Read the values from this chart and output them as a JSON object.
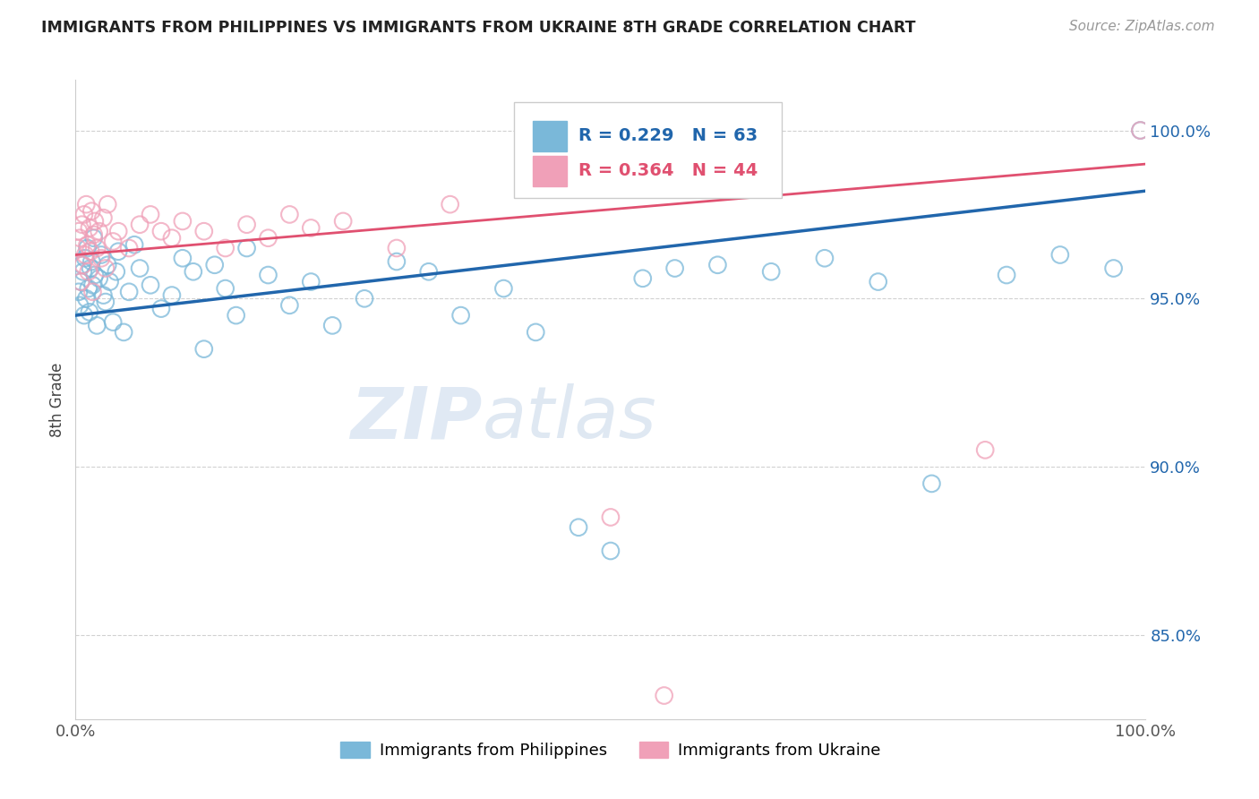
{
  "title": "IMMIGRANTS FROM PHILIPPINES VS IMMIGRANTS FROM UKRAINE 8TH GRADE CORRELATION CHART",
  "source": "Source: ZipAtlas.com",
  "ylabel": "8th Grade",
  "y_ticks": [
    85.0,
    90.0,
    95.0,
    100.0
  ],
  "y_tick_labels": [
    "85.0%",
    "90.0%",
    "95.0%",
    "100.0%"
  ],
  "x_range": [
    0.0,
    100.0
  ],
  "y_range": [
    82.5,
    101.5
  ],
  "legend_r_blue": "R = 0.229",
  "legend_n_blue": "N = 63",
  "legend_r_pink": "R = 0.364",
  "legend_n_pink": "N = 44",
  "blue_color": "#7ab8d9",
  "pink_color": "#f0a0b8",
  "blue_line_color": "#2166ac",
  "pink_line_color": "#e05070",
  "watermark_zip": "ZIP",
  "watermark_atlas": "atlas",
  "phil_x": [
    0.3,
    0.4,
    0.5,
    0.6,
    0.7,
    0.8,
    0.9,
    1.0,
    1.1,
    1.2,
    1.3,
    1.4,
    1.5,
    1.6,
    1.7,
    1.8,
    2.0,
    2.2,
    2.4,
    2.6,
    2.8,
    3.0,
    3.2,
    3.5,
    3.8,
    4.0,
    4.5,
    5.0,
    5.5,
    6.0,
    7.0,
    8.0,
    9.0,
    10.0,
    11.0,
    12.0,
    13.0,
    14.0,
    15.0,
    16.0,
    18.0,
    20.0,
    22.0,
    24.0,
    27.0,
    30.0,
    33.0,
    36.0,
    40.0,
    43.0,
    47.0,
    50.0,
    53.0,
    56.0,
    60.0,
    65.0,
    70.0,
    75.0,
    80.0,
    87.0,
    92.0,
    97.0,
    99.5
  ],
  "phil_y": [
    95.2,
    94.8,
    95.5,
    96.0,
    95.8,
    94.5,
    96.2,
    95.0,
    96.5,
    95.3,
    94.6,
    95.9,
    96.1,
    95.4,
    96.8,
    95.7,
    94.2,
    95.6,
    96.3,
    95.1,
    94.9,
    96.0,
    95.5,
    94.3,
    95.8,
    96.4,
    94.0,
    95.2,
    96.6,
    95.9,
    95.4,
    94.7,
    95.1,
    96.2,
    95.8,
    93.5,
    96.0,
    95.3,
    94.5,
    96.5,
    95.7,
    94.8,
    95.5,
    94.2,
    95.0,
    96.1,
    95.8,
    94.5,
    95.3,
    94.0,
    88.2,
    87.5,
    95.6,
    95.9,
    96.0,
    95.8,
    96.2,
    95.5,
    89.5,
    95.7,
    96.3,
    95.9,
    100.0
  ],
  "ukr_x": [
    0.2,
    0.3,
    0.4,
    0.5,
    0.6,
    0.7,
    0.8,
    0.9,
    1.0,
    1.1,
    1.2,
    1.3,
    1.4,
    1.5,
    1.6,
    1.7,
    1.8,
    2.0,
    2.2,
    2.4,
    2.6,
    2.8,
    3.0,
    3.5,
    4.0,
    5.0,
    6.0,
    7.0,
    8.0,
    9.0,
    10.0,
    12.0,
    14.0,
    16.0,
    18.0,
    20.0,
    22.0,
    25.0,
    30.0,
    35.0,
    50.0,
    55.0,
    85.0,
    99.5
  ],
  "ukr_y": [
    96.5,
    97.0,
    96.8,
    95.5,
    97.2,
    96.0,
    97.5,
    96.3,
    97.8,
    96.6,
    95.8,
    97.1,
    96.4,
    97.6,
    95.2,
    96.9,
    97.3,
    96.5,
    97.0,
    96.2,
    97.4,
    95.9,
    97.8,
    96.7,
    97.0,
    96.5,
    97.2,
    97.5,
    97.0,
    96.8,
    97.3,
    97.0,
    96.5,
    97.2,
    96.8,
    97.5,
    97.1,
    97.3,
    96.5,
    97.8,
    88.5,
    83.2,
    90.5,
    100.0
  ],
  "blue_line_x0": 0,
  "blue_line_y0": 94.5,
  "blue_line_x1": 100,
  "blue_line_y1": 98.2,
  "pink_line_x0": 0,
  "pink_line_y0": 96.3,
  "pink_line_x1": 100,
  "pink_line_y1": 99.0
}
